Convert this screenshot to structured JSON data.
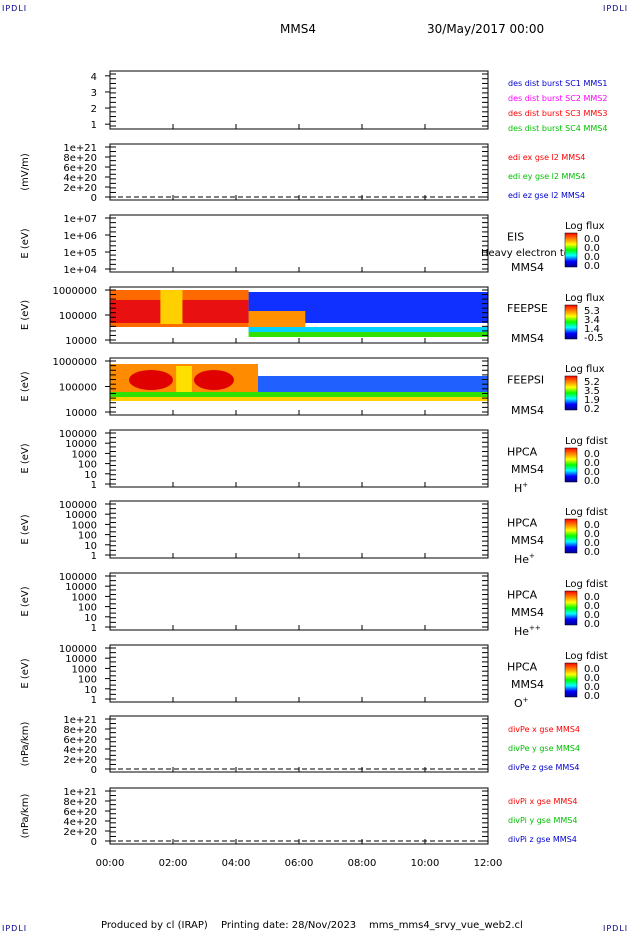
{
  "corner_label": "IPDLI",
  "header": {
    "spacecraft": "MMS4",
    "date": "30/May/2017 00:00"
  },
  "footer": {
    "produced_by": "Produced by cl (IRAP)",
    "printing_date": "Printing date: 28/Nov/2023",
    "script": "mms_mms4_srvy_vue_web2.cl"
  },
  "colors": {
    "red": "#ff0000",
    "green": "#00c000",
    "blue": "#0000cc",
    "magenta": "#ff00ff"
  },
  "chart_data": [
    {
      "type": "line",
      "panel": "des dist burst",
      "yticks": [
        "1",
        "2",
        "3",
        "4"
      ],
      "ylim": [
        0.7,
        4.3
      ],
      "legend": [
        {
          "label": "des dist burst SC1 MMS1",
          "color": "#0000cc"
        },
        {
          "label": "des dist burst SC2 MMS2",
          "color": "#ff00ff"
        },
        {
          "label": "des dist burst SC3 MMS3",
          "color": "#ff0000"
        },
        {
          "label": "des dist burst SC4 MMS4",
          "color": "#00c000"
        }
      ]
    },
    {
      "type": "line",
      "panel": "edi",
      "ylabel": "(mV/m)",
      "yticks": [
        "0",
        "2e+20",
        "4e+20",
        "6e+20",
        "8e+20",
        "1e+21"
      ],
      "legend": [
        {
          "label": "edi ex gse l2 MMS4",
          "color": "#ff0000"
        },
        {
          "label": "edi ey gse l2 MMS4",
          "color": "#00c000"
        },
        {
          "label": "edi ez gse l2 MMS4",
          "color": "#0000cc"
        }
      ]
    },
    {
      "type": "heatmap",
      "panel": "EIS",
      "ylabel": "E (eV)",
      "yticks": [
        "1e+04",
        "1e+05",
        "1e+06",
        "1e+07"
      ],
      "right_labels": [
        "EIS",
        "MMS4"
      ],
      "overlay_text": "Heavy electron to",
      "colorbar": {
        "title": "Log flux",
        "ticks": [
          "0.0",
          "0.0",
          "0.0",
          "0.0"
        ]
      }
    },
    {
      "type": "heatmap",
      "panel": "FEEPSE",
      "ylabel": "E (eV)",
      "yticks": [
        "10000",
        "100000",
        "1000000"
      ],
      "right_labels": [
        "FEEPSE",
        "MMS4"
      ],
      "colorbar": {
        "title": "Log flux",
        "ticks": [
          "5.3",
          "3.4",
          "1.4",
          "-0.5"
        ]
      }
    },
    {
      "type": "heatmap",
      "panel": "FEEPSI",
      "ylabel": "E (eV)",
      "yticks": [
        "10000",
        "100000",
        "1000000"
      ],
      "right_labels": [
        "FEEPSI",
        "MMS4"
      ],
      "colorbar": {
        "title": "Log flux",
        "ticks": [
          "5.2",
          "3.5",
          "1.9",
          "0.2"
        ]
      }
    },
    {
      "type": "heatmap",
      "panel": "HPCA H+",
      "ylabel": "E (eV)",
      "yticks": [
        "1",
        "10",
        "100",
        "1000",
        "10000",
        "100000"
      ],
      "right_labels": [
        "HPCA",
        "MMS4"
      ],
      "species": "H",
      "charge": "+",
      "colorbar": {
        "title": "Log fdist",
        "ticks": [
          "0.0",
          "0.0",
          "0.0",
          "0.0"
        ]
      }
    },
    {
      "type": "heatmap",
      "panel": "HPCA He+",
      "ylabel": "E (eV)",
      "yticks": [
        "1",
        "10",
        "100",
        "1000",
        "10000",
        "100000"
      ],
      "right_labels": [
        "HPCA",
        "MMS4"
      ],
      "species": "He",
      "charge": "+",
      "colorbar": {
        "title": "Log fdist",
        "ticks": [
          "0.0",
          "0.0",
          "0.0",
          "0.0"
        ]
      }
    },
    {
      "type": "heatmap",
      "panel": "HPCA He++",
      "ylabel": "E (eV)",
      "yticks": [
        "1",
        "10",
        "100",
        "1000",
        "10000",
        "100000"
      ],
      "right_labels": [
        "HPCA",
        "MMS4"
      ],
      "species": "He",
      "charge": "++",
      "colorbar": {
        "title": "Log fdist",
        "ticks": [
          "0.0",
          "0.0",
          "0.0",
          "0.0"
        ]
      }
    },
    {
      "type": "heatmap",
      "panel": "HPCA O+",
      "ylabel": "E (eV)",
      "yticks": [
        "1",
        "10",
        "100",
        "1000",
        "10000",
        "100000"
      ],
      "right_labels": [
        "HPCA",
        "MMS4"
      ],
      "species": "O",
      "charge": "+",
      "colorbar": {
        "title": "Log fdist",
        "ticks": [
          "0.0",
          "0.0",
          "0.0",
          "0.0"
        ]
      }
    },
    {
      "type": "line",
      "panel": "divPe",
      "ylabel": "(nPa/km)",
      "yticks": [
        "0",
        "2e+20",
        "4e+20",
        "6e+20",
        "8e+20",
        "1e+21"
      ],
      "legend": [
        {
          "label": "divPe x gse MMS4",
          "color": "#ff0000"
        },
        {
          "label": "divPe y gse MMS4",
          "color": "#00c000"
        },
        {
          "label": "divPe z gse MMS4",
          "color": "#0000cc"
        }
      ]
    },
    {
      "type": "line",
      "panel": "divPi",
      "ylabel": "(nPa/km)",
      "yticks": [
        "0",
        "2e+20",
        "4e+20",
        "6e+20",
        "8e+20",
        "1e+21"
      ],
      "legend": [
        {
          "label": "divPi x gse MMS4",
          "color": "#ff0000"
        },
        {
          "label": "divPi y gse MMS4",
          "color": "#00c000"
        },
        {
          "label": "divPi z gse MMS4",
          "color": "#0000cc"
        }
      ]
    }
  ],
  "time_axis": {
    "ticks": [
      "00:00",
      "02:00",
      "04:00",
      "06:00",
      "08:00",
      "10:00",
      "12:00"
    ]
  }
}
